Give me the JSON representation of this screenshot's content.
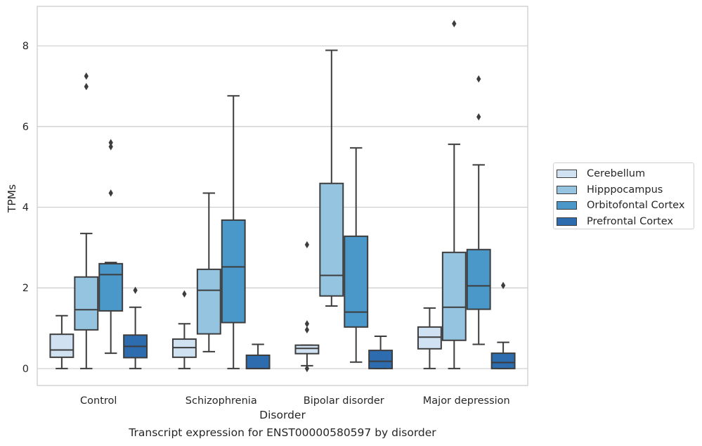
{
  "chart_data": {
    "type": "box",
    "caption": "Transcript expression for ENST00000580597 by disorder",
    "xlabel": "Disorder",
    "ylabel": "TPMs",
    "ylim": [
      -0.42,
      8.98
    ],
    "yticks": [
      0,
      2,
      4,
      6,
      8
    ],
    "grid": true,
    "legend_position": "right",
    "categories": [
      "Control",
      "Schizophrenia",
      "Bipolar disorder",
      "Major depression"
    ],
    "series": [
      {
        "name": "Cerebellum",
        "color": "#d0e1f2",
        "boxes": [
          {
            "whislo": 0.0,
            "q1": 0.28,
            "med": 0.46,
            "q3": 0.85,
            "whishi": 1.31,
            "fliers": []
          },
          {
            "whislo": 0.0,
            "q1": 0.28,
            "med": 0.52,
            "q3": 0.73,
            "whishi": 1.11,
            "fliers": [
              1.85
            ]
          },
          {
            "whislo": 0.07,
            "q1": 0.37,
            "med": 0.5,
            "q3": 0.58,
            "whishi": 0.58,
            "fliers": [
              3.07,
              1.11,
              0.96,
              0.0
            ]
          },
          {
            "whislo": 0.0,
            "q1": 0.49,
            "med": 0.78,
            "q3": 1.03,
            "whishi": 1.5,
            "fliers": []
          }
        ]
      },
      {
        "name": "Hipppocampus",
        "color": "#94c4df",
        "boxes": [
          {
            "whislo": 0.0,
            "q1": 0.96,
            "med": 1.46,
            "q3": 2.27,
            "whishi": 3.35,
            "fliers": [
              7.25,
              6.99
            ]
          },
          {
            "whislo": 0.42,
            "q1": 0.86,
            "med": 1.94,
            "q3": 2.46,
            "whishi": 4.35,
            "fliers": []
          },
          {
            "whislo": 1.55,
            "q1": 1.8,
            "med": 2.31,
            "q3": 4.59,
            "whishi": 7.89,
            "fliers": []
          },
          {
            "whislo": 0.0,
            "q1": 0.7,
            "med": 1.52,
            "q3": 2.88,
            "whishi": 5.56,
            "fliers": [
              8.55
            ]
          }
        ]
      },
      {
        "name": "Orbitofontal Cortex",
        "color": "#4a98c9",
        "boxes": [
          {
            "whislo": 0.38,
            "q1": 1.43,
            "med": 2.33,
            "q3": 2.6,
            "whishi": 2.63,
            "fliers": [
              5.6,
              5.5,
              4.35
            ]
          },
          {
            "whislo": 0.0,
            "q1": 1.14,
            "med": 2.52,
            "q3": 3.68,
            "whishi": 6.76,
            "fliers": []
          },
          {
            "whislo": 0.16,
            "q1": 1.03,
            "med": 1.4,
            "q3": 3.28,
            "whishi": 5.47,
            "fliers": []
          },
          {
            "whislo": 0.6,
            "q1": 1.47,
            "med": 2.05,
            "q3": 2.95,
            "whishi": 5.05,
            "fliers": [
              7.18,
              6.24
            ]
          }
        ]
      },
      {
        "name": "Prefrontal Cortex",
        "color": "#2d6daf",
        "boxes": [
          {
            "whislo": 0.0,
            "q1": 0.27,
            "med": 0.55,
            "q3": 0.83,
            "whishi": 1.52,
            "fliers": [
              1.94
            ]
          },
          {
            "whislo": 0.0,
            "q1": 0.0,
            "med": 0.0,
            "q3": 0.33,
            "whishi": 0.6,
            "fliers": []
          },
          {
            "whislo": 0.0,
            "q1": 0.0,
            "med": 0.18,
            "q3": 0.45,
            "whishi": 0.8,
            "fliers": []
          },
          {
            "whislo": 0.0,
            "q1": 0.0,
            "med": 0.15,
            "q3": 0.38,
            "whishi": 0.65,
            "fliers": [
              2.06
            ]
          }
        ]
      }
    ]
  }
}
